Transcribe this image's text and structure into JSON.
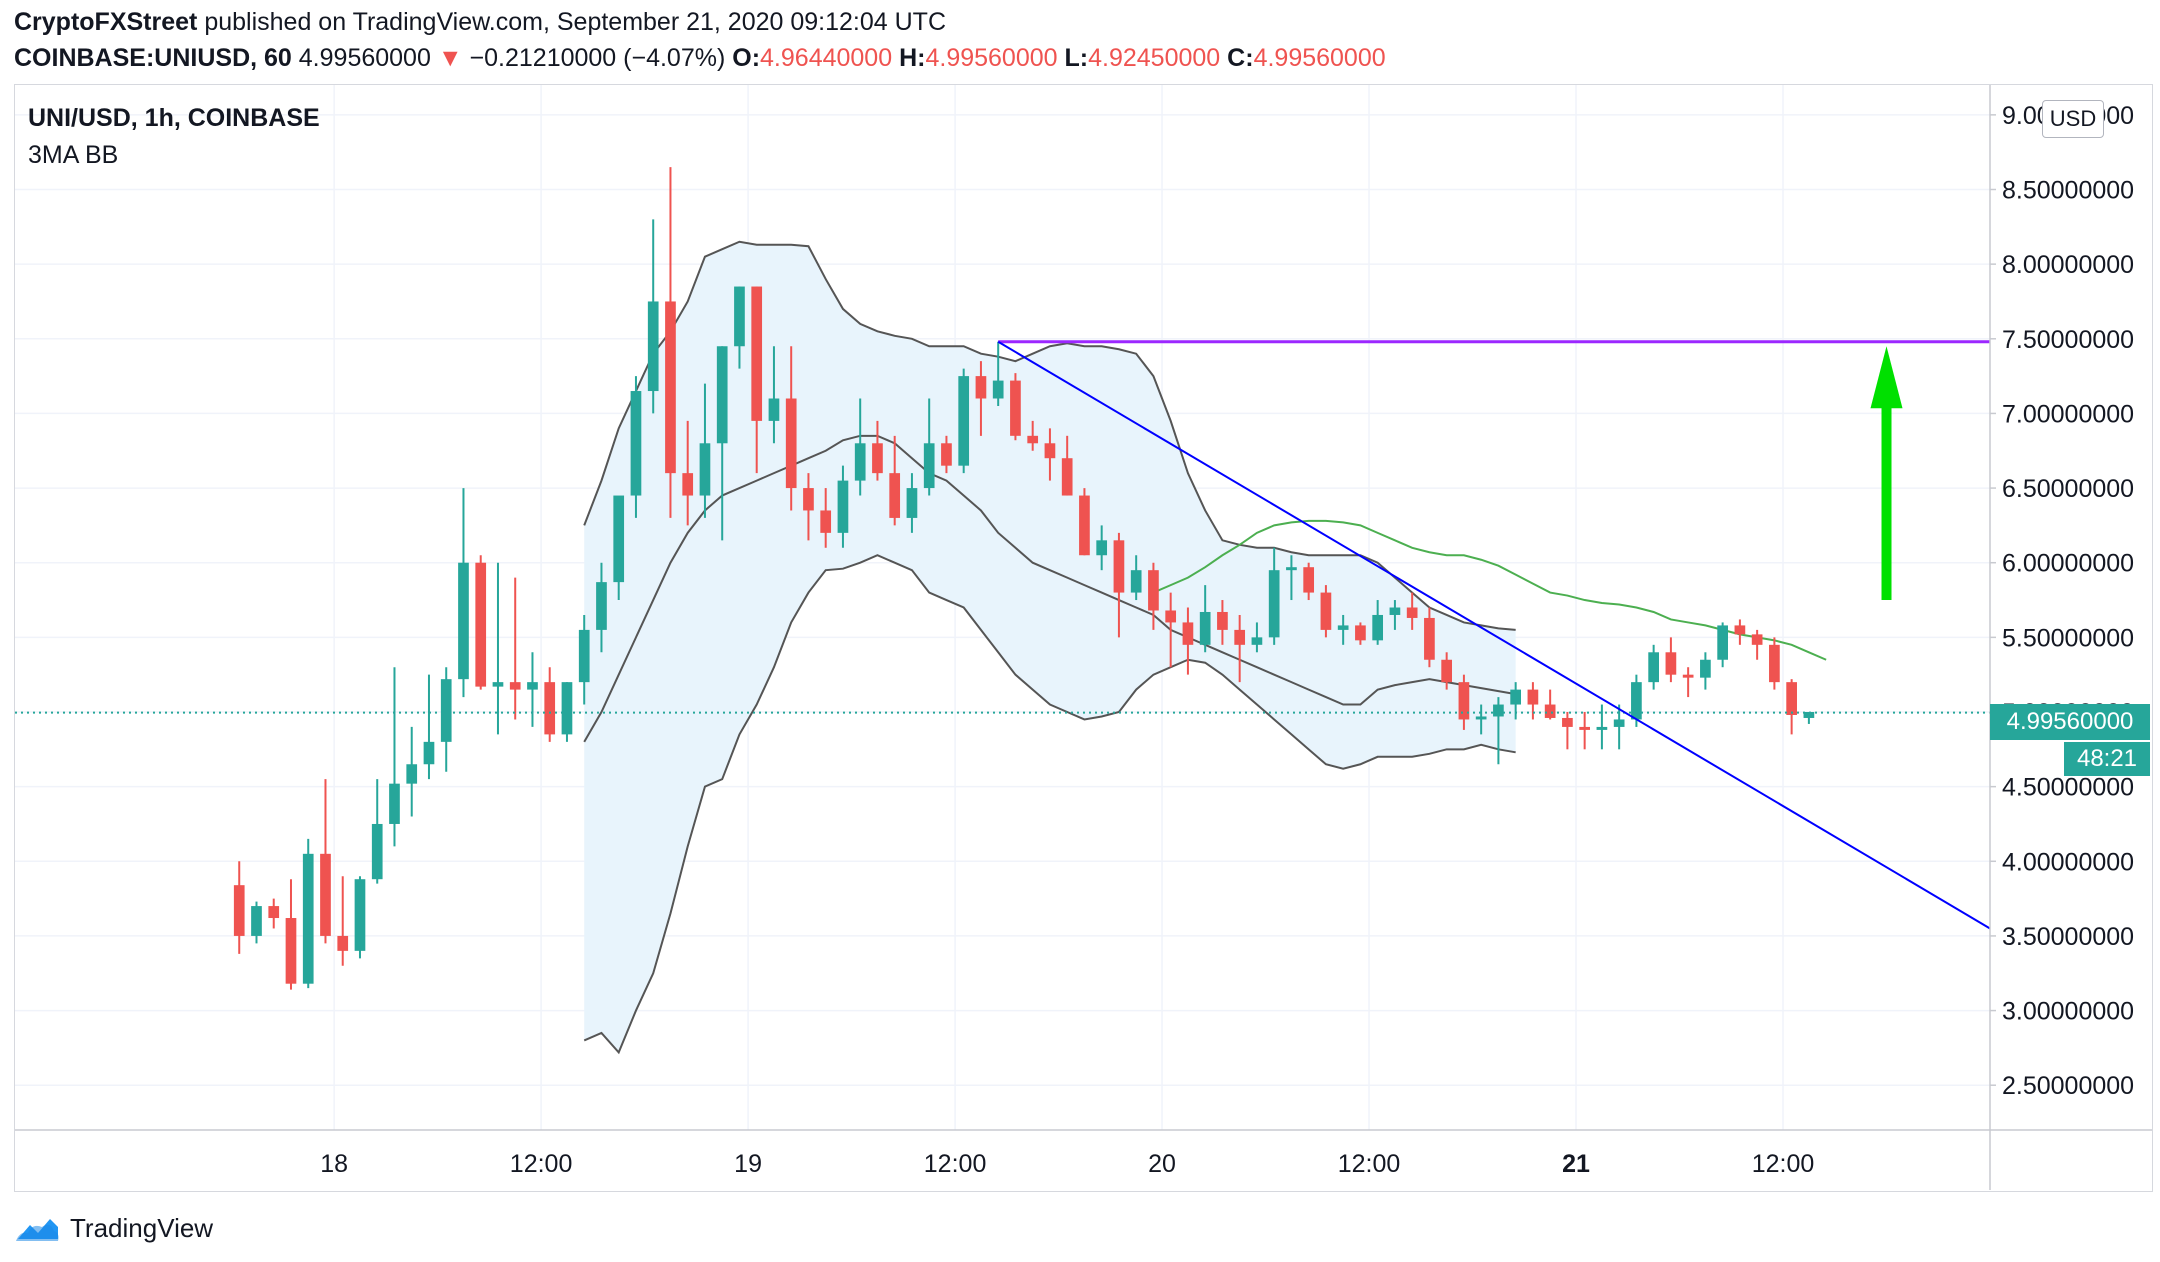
{
  "header": {
    "author": "CryptoFXStreet",
    "published_text": " published on TradingView.com, September 21, 2020 09:12:04 UTC",
    "symbol_line": "COINBASE:UNIUSD, 60",
    "last_price": "4.99560000",
    "change_arrow": "▼",
    "change": "−0.21210000 (−4.07%)",
    "o_label": "O:",
    "o_value": "4.96440000",
    "h_label": "H:",
    "h_value": "4.99560000",
    "l_label": "L:",
    "l_value": "4.92450000",
    "c_label": "C:",
    "c_value": "4.99560000"
  },
  "legend": {
    "title": "UNI/USD, 1h, COINBASE",
    "study": "3MA BB"
  },
  "price_scale": {
    "currency": "USD",
    "current_price": "4.99560000",
    "countdown": "48:21"
  },
  "footer": {
    "brand": "TradingView",
    "logo_icon": "tradingview-cloud-icon"
  },
  "colors": {
    "up": "#26a69a",
    "down": "#ef5350",
    "band_fill": "#e8f4fc",
    "band_line": "#555555",
    "ma_line": "#4caf50",
    "trendline": "#0000ff",
    "resistance": "#9c27ff",
    "arrow": "#00e000",
    "grid": "#f0f3fa"
  },
  "chart_data": {
    "type": "candlestick",
    "symbol": "UNI/USD",
    "interval": "1h",
    "exchange": "COINBASE",
    "ylim": [
      2.2,
      9.2
    ],
    "y_ticks": [
      "9.00000000",
      "8.50000000",
      "8.00000000",
      "7.50000000",
      "7.00000000",
      "6.50000000",
      "6.00000000",
      "5.50000000",
      "5.00000000",
      "4.50000000",
      "4.00000000",
      "3.50000000",
      "3.00000000",
      "2.50000000"
    ],
    "x_ticks": [
      "18",
      "12:00",
      "19",
      "12:00",
      "20",
      "12:00",
      "21",
      "12:00"
    ],
    "x_tick_bold": [
      false,
      false,
      false,
      false,
      false,
      false,
      true,
      false
    ],
    "x_tick_bars": [
      5.5,
      17.5,
      29.5,
      41.5,
      53.5,
      65.5,
      77.5,
      89.5
    ],
    "x_domain_bars": [
      -13,
      101.5
    ],
    "grid": true,
    "candles": [
      {
        "o": 3.84,
        "h": 4.0,
        "l": 3.38,
        "c": 3.5
      },
      {
        "o": 3.5,
        "h": 3.73,
        "l": 3.45,
        "c": 3.7
      },
      {
        "o": 3.7,
        "h": 3.75,
        "l": 3.55,
        "c": 3.62
      },
      {
        "o": 3.62,
        "h": 3.88,
        "l": 3.14,
        "c": 3.18
      },
      {
        "o": 3.18,
        "h": 4.15,
        "l": 3.15,
        "c": 4.05
      },
      {
        "o": 4.05,
        "h": 4.55,
        "l": 3.45,
        "c": 3.5
      },
      {
        "o": 3.5,
        "h": 3.9,
        "l": 3.3,
        "c": 3.4
      },
      {
        "o": 3.4,
        "h": 3.9,
        "l": 3.35,
        "c": 3.88
      },
      {
        "o": 3.88,
        "h": 4.55,
        "l": 3.85,
        "c": 4.25
      },
      {
        "o": 4.25,
        "h": 5.3,
        "l": 4.1,
        "c": 4.52
      },
      {
        "o": 4.52,
        "h": 4.9,
        "l": 4.3,
        "c": 4.65
      },
      {
        "o": 4.65,
        "h": 5.25,
        "l": 4.55,
        "c": 4.8
      },
      {
        "o": 4.8,
        "h": 5.3,
        "l": 4.6,
        "c": 5.22
      },
      {
        "o": 5.22,
        "h": 6.5,
        "l": 5.1,
        "c": 6.0
      },
      {
        "o": 6.0,
        "h": 6.05,
        "l": 5.15,
        "c": 5.17
      },
      {
        "o": 5.17,
        "h": 6.0,
        "l": 4.85,
        "c": 5.2
      },
      {
        "o": 5.2,
        "h": 5.9,
        "l": 4.95,
        "c": 5.15
      },
      {
        "o": 5.15,
        "h": 5.4,
        "l": 4.9,
        "c": 5.2
      },
      {
        "o": 5.2,
        "h": 5.3,
        "l": 4.8,
        "c": 4.85
      },
      {
        "o": 4.85,
        "h": 5.2,
        "l": 4.8,
        "c": 5.2
      },
      {
        "o": 5.2,
        "h": 5.65,
        "l": 5.05,
        "c": 5.55
      },
      {
        "o": 5.55,
        "h": 6.0,
        "l": 5.4,
        "c": 5.87
      },
      {
        "o": 5.87,
        "h": 6.4,
        "l": 5.75,
        "c": 6.45
      },
      {
        "o": 6.45,
        "h": 7.25,
        "l": 6.3,
        "c": 7.15
      },
      {
        "o": 7.15,
        "h": 8.3,
        "l": 7.0,
        "c": 7.75
      },
      {
        "o": 7.75,
        "h": 8.65,
        "l": 6.3,
        "c": 6.6
      },
      {
        "o": 6.6,
        "h": 6.95,
        "l": 6.25,
        "c": 6.45
      },
      {
        "o": 6.45,
        "h": 7.2,
        "l": 6.3,
        "c": 6.8
      },
      {
        "o": 6.8,
        "h": 7.45,
        "l": 6.15,
        "c": 7.45
      },
      {
        "o": 7.45,
        "h": 7.85,
        "l": 7.3,
        "c": 7.85
      },
      {
        "o": 7.85,
        "h": 7.85,
        "l": 6.6,
        "c": 6.95
      },
      {
        "o": 6.95,
        "h": 7.45,
        "l": 6.8,
        "c": 7.1
      },
      {
        "o": 7.1,
        "h": 7.45,
        "l": 6.35,
        "c": 6.5
      },
      {
        "o": 6.5,
        "h": 6.6,
        "l": 6.15,
        "c": 6.35
      },
      {
        "o": 6.35,
        "h": 6.5,
        "l": 6.1,
        "c": 6.2
      },
      {
        "o": 6.2,
        "h": 6.65,
        "l": 6.1,
        "c": 6.55
      },
      {
        "o": 6.55,
        "h": 7.1,
        "l": 6.45,
        "c": 6.8
      },
      {
        "o": 6.8,
        "h": 6.95,
        "l": 6.55,
        "c": 6.6
      },
      {
        "o": 6.6,
        "h": 6.85,
        "l": 6.25,
        "c": 6.3
      },
      {
        "o": 6.3,
        "h": 6.6,
        "l": 6.2,
        "c": 6.5
      },
      {
        "o": 6.5,
        "h": 7.1,
        "l": 6.45,
        "c": 6.8
      },
      {
        "o": 6.8,
        "h": 6.85,
        "l": 6.6,
        "c": 6.65
      },
      {
        "o": 6.65,
        "h": 7.3,
        "l": 6.6,
        "c": 7.25
      },
      {
        "o": 7.25,
        "h": 7.35,
        "l": 6.85,
        "c": 7.1
      },
      {
        "o": 7.1,
        "h": 7.48,
        "l": 7.05,
        "c": 7.22
      },
      {
        "o": 7.22,
        "h": 7.27,
        "l": 6.82,
        "c": 6.85
      },
      {
        "o": 6.85,
        "h": 6.95,
        "l": 6.75,
        "c": 6.8
      },
      {
        "o": 6.8,
        "h": 6.9,
        "l": 6.55,
        "c": 6.7
      },
      {
        "o": 6.7,
        "h": 6.85,
        "l": 6.45,
        "c": 6.45
      },
      {
        "o": 6.45,
        "h": 6.5,
        "l": 6.05,
        "c": 6.05
      },
      {
        "o": 6.05,
        "h": 6.25,
        "l": 5.95,
        "c": 6.15
      },
      {
        "o": 6.15,
        "h": 6.2,
        "l": 5.5,
        "c": 5.8
      },
      {
        "o": 5.8,
        "h": 6.05,
        "l": 5.75,
        "c": 5.95
      },
      {
        "o": 5.95,
        "h": 6.0,
        "l": 5.55,
        "c": 5.68
      },
      {
        "o": 5.68,
        "h": 5.8,
        "l": 5.3,
        "c": 5.6
      },
      {
        "o": 5.6,
        "h": 5.7,
        "l": 5.25,
        "c": 5.45
      },
      {
        "o": 5.45,
        "h": 5.85,
        "l": 5.4,
        "c": 5.67
      },
      {
        "o": 5.67,
        "h": 5.75,
        "l": 5.45,
        "c": 5.55
      },
      {
        "o": 5.55,
        "h": 5.65,
        "l": 5.2,
        "c": 5.45
      },
      {
        "o": 5.45,
        "h": 5.6,
        "l": 5.4,
        "c": 5.5
      },
      {
        "o": 5.5,
        "h": 6.1,
        "l": 5.45,
        "c": 5.95
      },
      {
        "o": 5.95,
        "h": 6.05,
        "l": 5.75,
        "c": 5.97
      },
      {
        "o": 5.97,
        "h": 6.0,
        "l": 5.75,
        "c": 5.8
      },
      {
        "o": 5.8,
        "h": 5.85,
        "l": 5.5,
        "c": 5.55
      },
      {
        "o": 5.55,
        "h": 5.65,
        "l": 5.45,
        "c": 5.58
      },
      {
        "o": 5.58,
        "h": 5.6,
        "l": 5.45,
        "c": 5.48
      },
      {
        "o": 5.48,
        "h": 5.75,
        "l": 5.45,
        "c": 5.65
      },
      {
        "o": 5.65,
        "h": 5.75,
        "l": 5.55,
        "c": 5.7
      },
      {
        "o": 5.7,
        "h": 5.8,
        "l": 5.55,
        "c": 5.63
      },
      {
        "o": 5.63,
        "h": 5.7,
        "l": 5.3,
        "c": 5.35
      },
      {
        "o": 5.35,
        "h": 5.4,
        "l": 5.15,
        "c": 5.2
      },
      {
        "o": 5.2,
        "h": 5.25,
        "l": 4.88,
        "c": 4.95
      },
      {
        "o": 4.95,
        "h": 5.05,
        "l": 4.85,
        "c": 4.97
      },
      {
        "o": 4.97,
        "h": 5.1,
        "l": 4.65,
        "c": 5.05
      },
      {
        "o": 5.05,
        "h": 5.2,
        "l": 4.95,
        "c": 5.15
      },
      {
        "o": 5.15,
        "h": 5.2,
        "l": 4.95,
        "c": 5.05
      },
      {
        "o": 5.05,
        "h": 5.15,
        "l": 4.95,
        "c": 4.96
      },
      {
        "o": 4.96,
        "h": 5.0,
        "l": 4.75,
        "c": 4.9
      },
      {
        "o": 4.9,
        "h": 5.0,
        "l": 4.75,
        "c": 4.88
      },
      {
        "o": 4.88,
        "h": 5.05,
        "l": 4.75,
        "c": 4.9
      },
      {
        "o": 4.9,
        "h": 5.05,
        "l": 4.75,
        "c": 4.95
      },
      {
        "o": 4.95,
        "h": 5.25,
        "l": 4.9,
        "c": 5.2
      },
      {
        "o": 5.2,
        "h": 5.45,
        "l": 5.15,
        "c": 5.4
      },
      {
        "o": 5.4,
        "h": 5.5,
        "l": 5.2,
        "c": 5.25
      },
      {
        "o": 5.25,
        "h": 5.3,
        "l": 5.1,
        "c": 5.23
      },
      {
        "o": 5.23,
        "h": 5.4,
        "l": 5.15,
        "c": 5.35
      },
      {
        "o": 5.35,
        "h": 5.6,
        "l": 5.3,
        "c": 5.58
      },
      {
        "o": 5.58,
        "h": 5.62,
        "l": 5.45,
        "c": 5.52
      },
      {
        "o": 5.52,
        "h": 5.55,
        "l": 5.35,
        "c": 5.45
      },
      {
        "o": 5.45,
        "h": 5.5,
        "l": 5.15,
        "c": 5.2
      },
      {
        "o": 5.2,
        "h": 5.22,
        "l": 4.85,
        "c": 4.98
      },
      {
        "o": 4.96,
        "h": 5.0,
        "l": 4.92,
        "c": 5.0
      }
    ],
    "bb_start_bar": 20,
    "bb_upper": [
      6.25,
      6.55,
      6.9,
      7.15,
      7.4,
      7.55,
      7.75,
      8.05,
      8.1,
      8.15,
      8.13,
      8.13,
      8.13,
      8.12,
      7.9,
      7.7,
      7.6,
      7.55,
      7.52,
      7.5,
      7.45,
      7.45,
      7.45,
      7.4,
      7.38,
      7.35,
      7.4,
      7.45,
      7.47,
      7.45,
      7.45,
      7.43,
      7.4,
      7.25,
      6.95,
      6.6,
      6.35,
      6.15,
      6.12,
      6.1,
      6.1,
      6.07,
      6.05,
      6.05,
      6.05,
      6.05,
      6.0,
      5.9,
      5.8,
      5.7,
      5.65,
      5.6,
      5.58,
      5.56,
      5.55
    ],
    "bb_middle": [
      4.8,
      5.0,
      5.25,
      5.5,
      5.75,
      6.0,
      6.2,
      6.35,
      6.45,
      6.5,
      6.55,
      6.6,
      6.65,
      6.7,
      6.75,
      6.82,
      6.85,
      6.85,
      6.8,
      6.7,
      6.6,
      6.55,
      6.45,
      6.35,
      6.2,
      6.1,
      6.0,
      5.95,
      5.9,
      5.85,
      5.8,
      5.75,
      5.7,
      5.65,
      5.55,
      5.5,
      5.45,
      5.4,
      5.35,
      5.3,
      5.25,
      5.2,
      5.15,
      5.1,
      5.05,
      5.05,
      5.15,
      5.18,
      5.2,
      5.22,
      5.2,
      5.18,
      5.16,
      5.14,
      5.12
    ],
    "bb_lower": [
      2.8,
      2.85,
      2.72,
      3.0,
      3.25,
      3.65,
      4.1,
      4.5,
      4.55,
      4.85,
      5.05,
      5.3,
      5.6,
      5.8,
      5.95,
      5.96,
      6.0,
      6.05,
      6.0,
      5.95,
      5.8,
      5.75,
      5.7,
      5.55,
      5.4,
      5.25,
      5.15,
      5.05,
      5.0,
      4.95,
      4.97,
      5.0,
      5.15,
      5.25,
      5.3,
      5.35,
      5.33,
      5.25,
      5.15,
      5.05,
      4.95,
      4.85,
      4.75,
      4.65,
      4.62,
      4.65,
      4.7,
      4.7,
      4.7,
      4.72,
      4.75,
      4.75,
      4.78,
      4.75,
      4.73
    ],
    "ma_start_bar": 53,
    "ma": [
      5.8,
      5.85,
      5.9,
      5.97,
      6.05,
      6.12,
      6.2,
      6.25,
      6.27,
      6.28,
      6.28,
      6.27,
      6.25,
      6.2,
      6.15,
      6.1,
      6.07,
      6.05,
      6.05,
      6.02,
      5.98,
      5.92,
      5.86,
      5.8,
      5.78,
      5.75,
      5.73,
      5.72,
      5.7,
      5.67,
      5.62,
      5.6,
      5.58,
      5.55,
      5.52,
      5.5,
      5.48,
      5.45,
      5.4,
      5.35
    ],
    "resistance": {
      "bar_from": 44,
      "bar_to": 101.5,
      "price": 7.48
    },
    "trendline": {
      "bar1": 44,
      "price1": 7.48,
      "bar2": 101.5,
      "price2": 3.55
    },
    "arrow": {
      "bar": 95.5,
      "price_from": 5.75,
      "price_to": 7.45
    },
    "last_price": 4.9956
  }
}
